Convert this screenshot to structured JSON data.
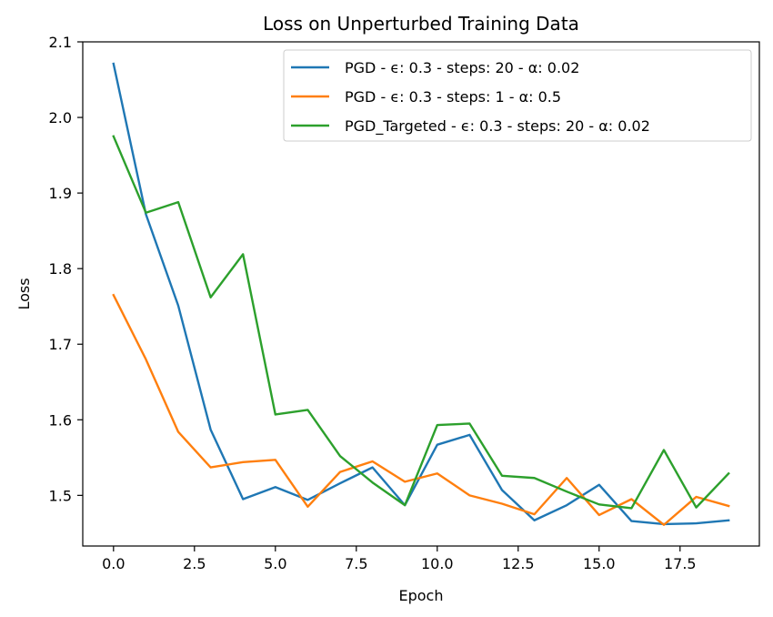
{
  "chart_data": {
    "type": "line",
    "title": "Loss on Unperturbed Training Data",
    "xlabel": "Epoch",
    "ylabel": "Loss",
    "xlim": [
      -0.95,
      19.95
    ],
    "ylim": [
      1.433,
      2.1
    ],
    "xticks": [
      "0.0",
      "2.5",
      "5.0",
      "7.5",
      "10.0",
      "12.5",
      "15.0",
      "17.5"
    ],
    "xtick_values": [
      0,
      2.5,
      5,
      7.5,
      10,
      12.5,
      15,
      17.5
    ],
    "yticks": [
      "1.5",
      "1.6",
      "1.7",
      "1.8",
      "1.9",
      "2.0",
      "2.1"
    ],
    "ytick_values": [
      1.5,
      1.6,
      1.7,
      1.8,
      1.9,
      2.0,
      2.1
    ],
    "grid": false,
    "legend_position": "top-right",
    "x": [
      0,
      1,
      2,
      3,
      4,
      5,
      6,
      7,
      8,
      9,
      10,
      11,
      12,
      13,
      14,
      15,
      16,
      17,
      18,
      19
    ],
    "series": [
      {
        "name": "PGD - ϵ: 0.3 - steps: 20 - α: 0.02",
        "color": "#1f77b4",
        "values": [
          2.071,
          1.872,
          1.751,
          1.587,
          1.495,
          1.511,
          1.494,
          1.516,
          1.537,
          1.487,
          1.567,
          1.58,
          1.507,
          1.467,
          1.487,
          1.514,
          1.466,
          1.462,
          1.463,
          1.467
        ]
      },
      {
        "name": "PGD - ϵ: 0.3 - steps: 1 - α: 0.5",
        "color": "#ff7f0e",
        "values": [
          1.765,
          1.68,
          1.584,
          1.537,
          1.544,
          1.547,
          1.485,
          1.531,
          1.545,
          1.518,
          1.529,
          1.5,
          1.489,
          1.475,
          1.523,
          1.474,
          1.495,
          1.461,
          1.498,
          1.486
        ]
      },
      {
        "name": "PGD_Targeted - ϵ: 0.3 - steps: 20 - α: 0.02",
        "color": "#2ca02c",
        "values": [
          1.975,
          1.874,
          1.888,
          1.762,
          1.819,
          1.607,
          1.613,
          1.552,
          1.517,
          1.487,
          1.593,
          1.595,
          1.526,
          1.523,
          1.505,
          1.488,
          1.483,
          1.56,
          1.484,
          1.529
        ]
      }
    ]
  }
}
